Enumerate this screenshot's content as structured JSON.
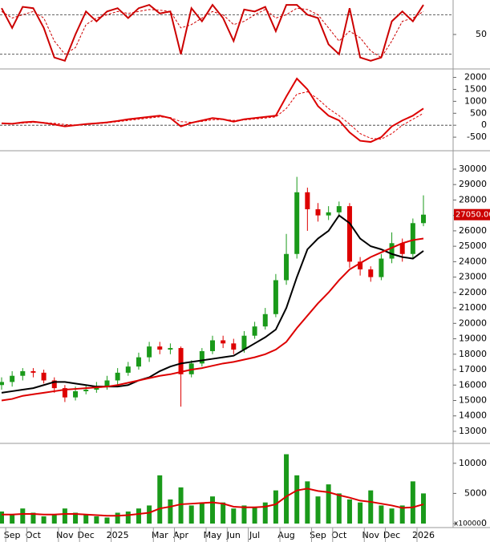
{
  "chart_data": [
    {
      "type": "line",
      "ylim": [
        0,
        100
      ],
      "yticks": [
        50
      ],
      "levels": [
        20,
        80
      ],
      "series": [
        {
          "color": "#cc0000",
          "values": [
            90,
            60,
            92,
            90,
            60,
            15,
            10,
            50,
            85,
            70,
            85,
            90,
            75,
            90,
            95,
            82,
            85,
            20,
            90,
            70,
            95,
            75,
            40,
            88,
            85,
            92,
            55,
            95,
            95,
            80,
            75,
            35,
            20,
            90,
            15,
            10,
            15,
            70,
            85,
            70,
            95
          ]
        },
        {
          "color": "#cc0000",
          "dashed": true,
          "values": [
            85,
            75,
            80,
            85,
            75,
            40,
            20,
            30,
            65,
            75,
            80,
            85,
            82,
            85,
            88,
            87,
            85,
            60,
            65,
            75,
            85,
            80,
            65,
            70,
            80,
            88,
            75,
            80,
            90,
            88,
            80,
            60,
            40,
            55,
            45,
            25,
            15,
            40,
            70,
            75,
            85
          ]
        }
      ]
    },
    {
      "type": "line",
      "ylim": [
        -1000,
        2220
      ],
      "yticks": [
        2000,
        1500,
        1000,
        500,
        0,
        -500
      ],
      "levels": [
        0
      ],
      "series": [
        {
          "color": "#dd0000",
          "values": [
            80,
            60,
            120,
            150,
            100,
            30,
            -50,
            0,
            50,
            80,
            120,
            180,
            250,
            300,
            350,
            400,
            300,
            -50,
            100,
            200,
            300,
            250,
            150,
            250,
            300,
            350,
            400,
            1200,
            1950,
            1500,
            800,
            400,
            200,
            -300,
            -650,
            -700,
            -500,
            -50,
            200,
            400,
            700
          ]
        },
        {
          "color": "#dd0000",
          "dashed": true,
          "values": [
            60,
            60,
            90,
            120,
            110,
            80,
            30,
            10,
            30,
            60,
            100,
            150,
            200,
            250,
            300,
            350,
            320,
            150,
            120,
            160,
            230,
            240,
            200,
            220,
            260,
            300,
            350,
            700,
            1300,
            1400,
            1100,
            700,
            400,
            50,
            -350,
            -550,
            -580,
            -350,
            0,
            250,
            500
          ]
        }
      ]
    },
    {
      "type": "candlestick",
      "ylim": [
        12270,
        31090
      ],
      "yticks": [
        13000,
        14000,
        15000,
        16000,
        17000,
        18000,
        19000,
        20000,
        21000,
        22000,
        23000,
        24000,
        25000,
        26000,
        27000,
        28000,
        29000,
        30000
      ],
      "up_color": "#1a9a1a",
      "down_color": "#dd0000",
      "open": [
        16000,
        16200,
        16600,
        16900,
        16800,
        16300,
        15800,
        15200,
        15600,
        15700,
        15900,
        16300,
        16800,
        17200,
        17800,
        18500,
        18300,
        18400,
        16700,
        17400,
        18200,
        18900,
        18700,
        18300,
        19200,
        19800,
        20600,
        22800,
        24500,
        28500,
        27400,
        27000,
        27200,
        27600,
        24000,
        23500,
        23000,
        24200,
        25200,
        24500,
        26500
      ],
      "high": [
        16500,
        16900,
        17100,
        17100,
        17000,
        16500,
        16000,
        15900,
        16000,
        16200,
        16600,
        17100,
        17500,
        18100,
        18800,
        18800,
        18700,
        18500,
        17600,
        18400,
        19200,
        19200,
        19000,
        19500,
        20100,
        21000,
        23200,
        25800,
        29500,
        28800,
        27800,
        27600,
        27900,
        27800,
        24300,
        23700,
        24500,
        25900,
        25500,
        26800,
        28300
      ],
      "low": [
        15700,
        15900,
        16300,
        16500,
        16100,
        15500,
        14900,
        15000,
        15400,
        15500,
        15700,
        16000,
        16600,
        17000,
        17500,
        18000,
        18000,
        14600,
        16500,
        17200,
        18000,
        18400,
        18000,
        18100,
        19000,
        19600,
        20400,
        22500,
        24200,
        26000,
        26600,
        26700,
        26900,
        23600,
        23100,
        22700,
        22800,
        23900,
        24000,
        24200,
        26300
      ],
      "close": [
        16200,
        16600,
        16900,
        16800,
        16300,
        15800,
        15200,
        15600,
        15700,
        15900,
        16300,
        16800,
        17200,
        17800,
        18500,
        18300,
        18400,
        16700,
        17400,
        18200,
        18900,
        18700,
        18300,
        19200,
        19800,
        20600,
        22800,
        24500,
        28500,
        27400,
        27000,
        27200,
        27600,
        24000,
        23500,
        23000,
        24200,
        25200,
        24500,
        26500,
        27050
      ],
      "series": [
        {
          "color": "#000000",
          "values": [
            15500,
            15600,
            15700,
            15800,
            16000,
            16200,
            16200,
            16100,
            16000,
            15900,
            15900,
            15900,
            16000,
            16300,
            16500,
            16900,
            17200,
            17400,
            17500,
            17600,
            17700,
            17800,
            17900,
            18300,
            18700,
            19100,
            19600,
            21000,
            23000,
            24800,
            25500,
            26000,
            27000,
            26500,
            25500,
            25000,
            24800,
            24500,
            24300,
            24200,
            24700
          ]
        },
        {
          "color": "#dd0000",
          "values": [
            15000,
            15100,
            15300,
            15400,
            15500,
            15600,
            15700,
            15750,
            15800,
            15850,
            15900,
            16000,
            16150,
            16300,
            16450,
            16600,
            16700,
            16850,
            17000,
            17100,
            17250,
            17400,
            17500,
            17650,
            17800,
            18000,
            18300,
            18800,
            19700,
            20500,
            21300,
            22000,
            22800,
            23500,
            23900,
            24300,
            24600,
            24900,
            25200,
            25400,
            25500
          ]
        }
      ],
      "last_value": {
        "value": 27050,
        "label": "27050.00"
      }
    },
    {
      "type": "bar",
      "ylim": [
        0,
        12900
      ],
      "yticks": [
        10000,
        5000,
        0
      ],
      "unit_label": "x10000",
      "color": "#1a9a1a",
      "categories": [
        null,
        "Sep",
        null,
        "Oct",
        null,
        null,
        "Nov",
        null,
        "Dec",
        null,
        null,
        "2025",
        null,
        null,
        null,
        "Mar",
        null,
        "Apr",
        null,
        null,
        "May",
        null,
        "Jun",
        null,
        "Jul",
        null,
        null,
        "Aug",
        null,
        null,
        "Sep",
        null,
        "Oct",
        null,
        null,
        "Nov",
        null,
        "Dec",
        null,
        null,
        "2026"
      ],
      "values": [
        2000,
        1500,
        2500,
        1800,
        1200,
        1500,
        2500,
        1800,
        1500,
        1200,
        1000,
        1800,
        2000,
        2500,
        3000,
        8000,
        4000,
        6000,
        3000,
        3500,
        4500,
        3500,
        2500,
        3000,
        2800,
        3500,
        5500,
        11500,
        8000,
        7000,
        4500,
        6500,
        5000,
        4000,
        3500,
        5500,
        3000,
        2500,
        3000,
        7000,
        5000
      ],
      "series": [
        {
          "color": "#dd0000",
          "values": [
            1500,
            1500,
            1600,
            1600,
            1500,
            1500,
            1600,
            1600,
            1500,
            1400,
            1300,
            1300,
            1400,
            1600,
            1800,
            2500,
            2800,
            3200,
            3300,
            3400,
            3500,
            3300,
            2800,
            2700,
            2700,
            2800,
            3200,
            4500,
            5500,
            5800,
            5400,
            5200,
            4700,
            4300,
            3800,
            3600,
            3300,
            3000,
            2600,
            2700,
            3200
          ]
        }
      ]
    }
  ]
}
